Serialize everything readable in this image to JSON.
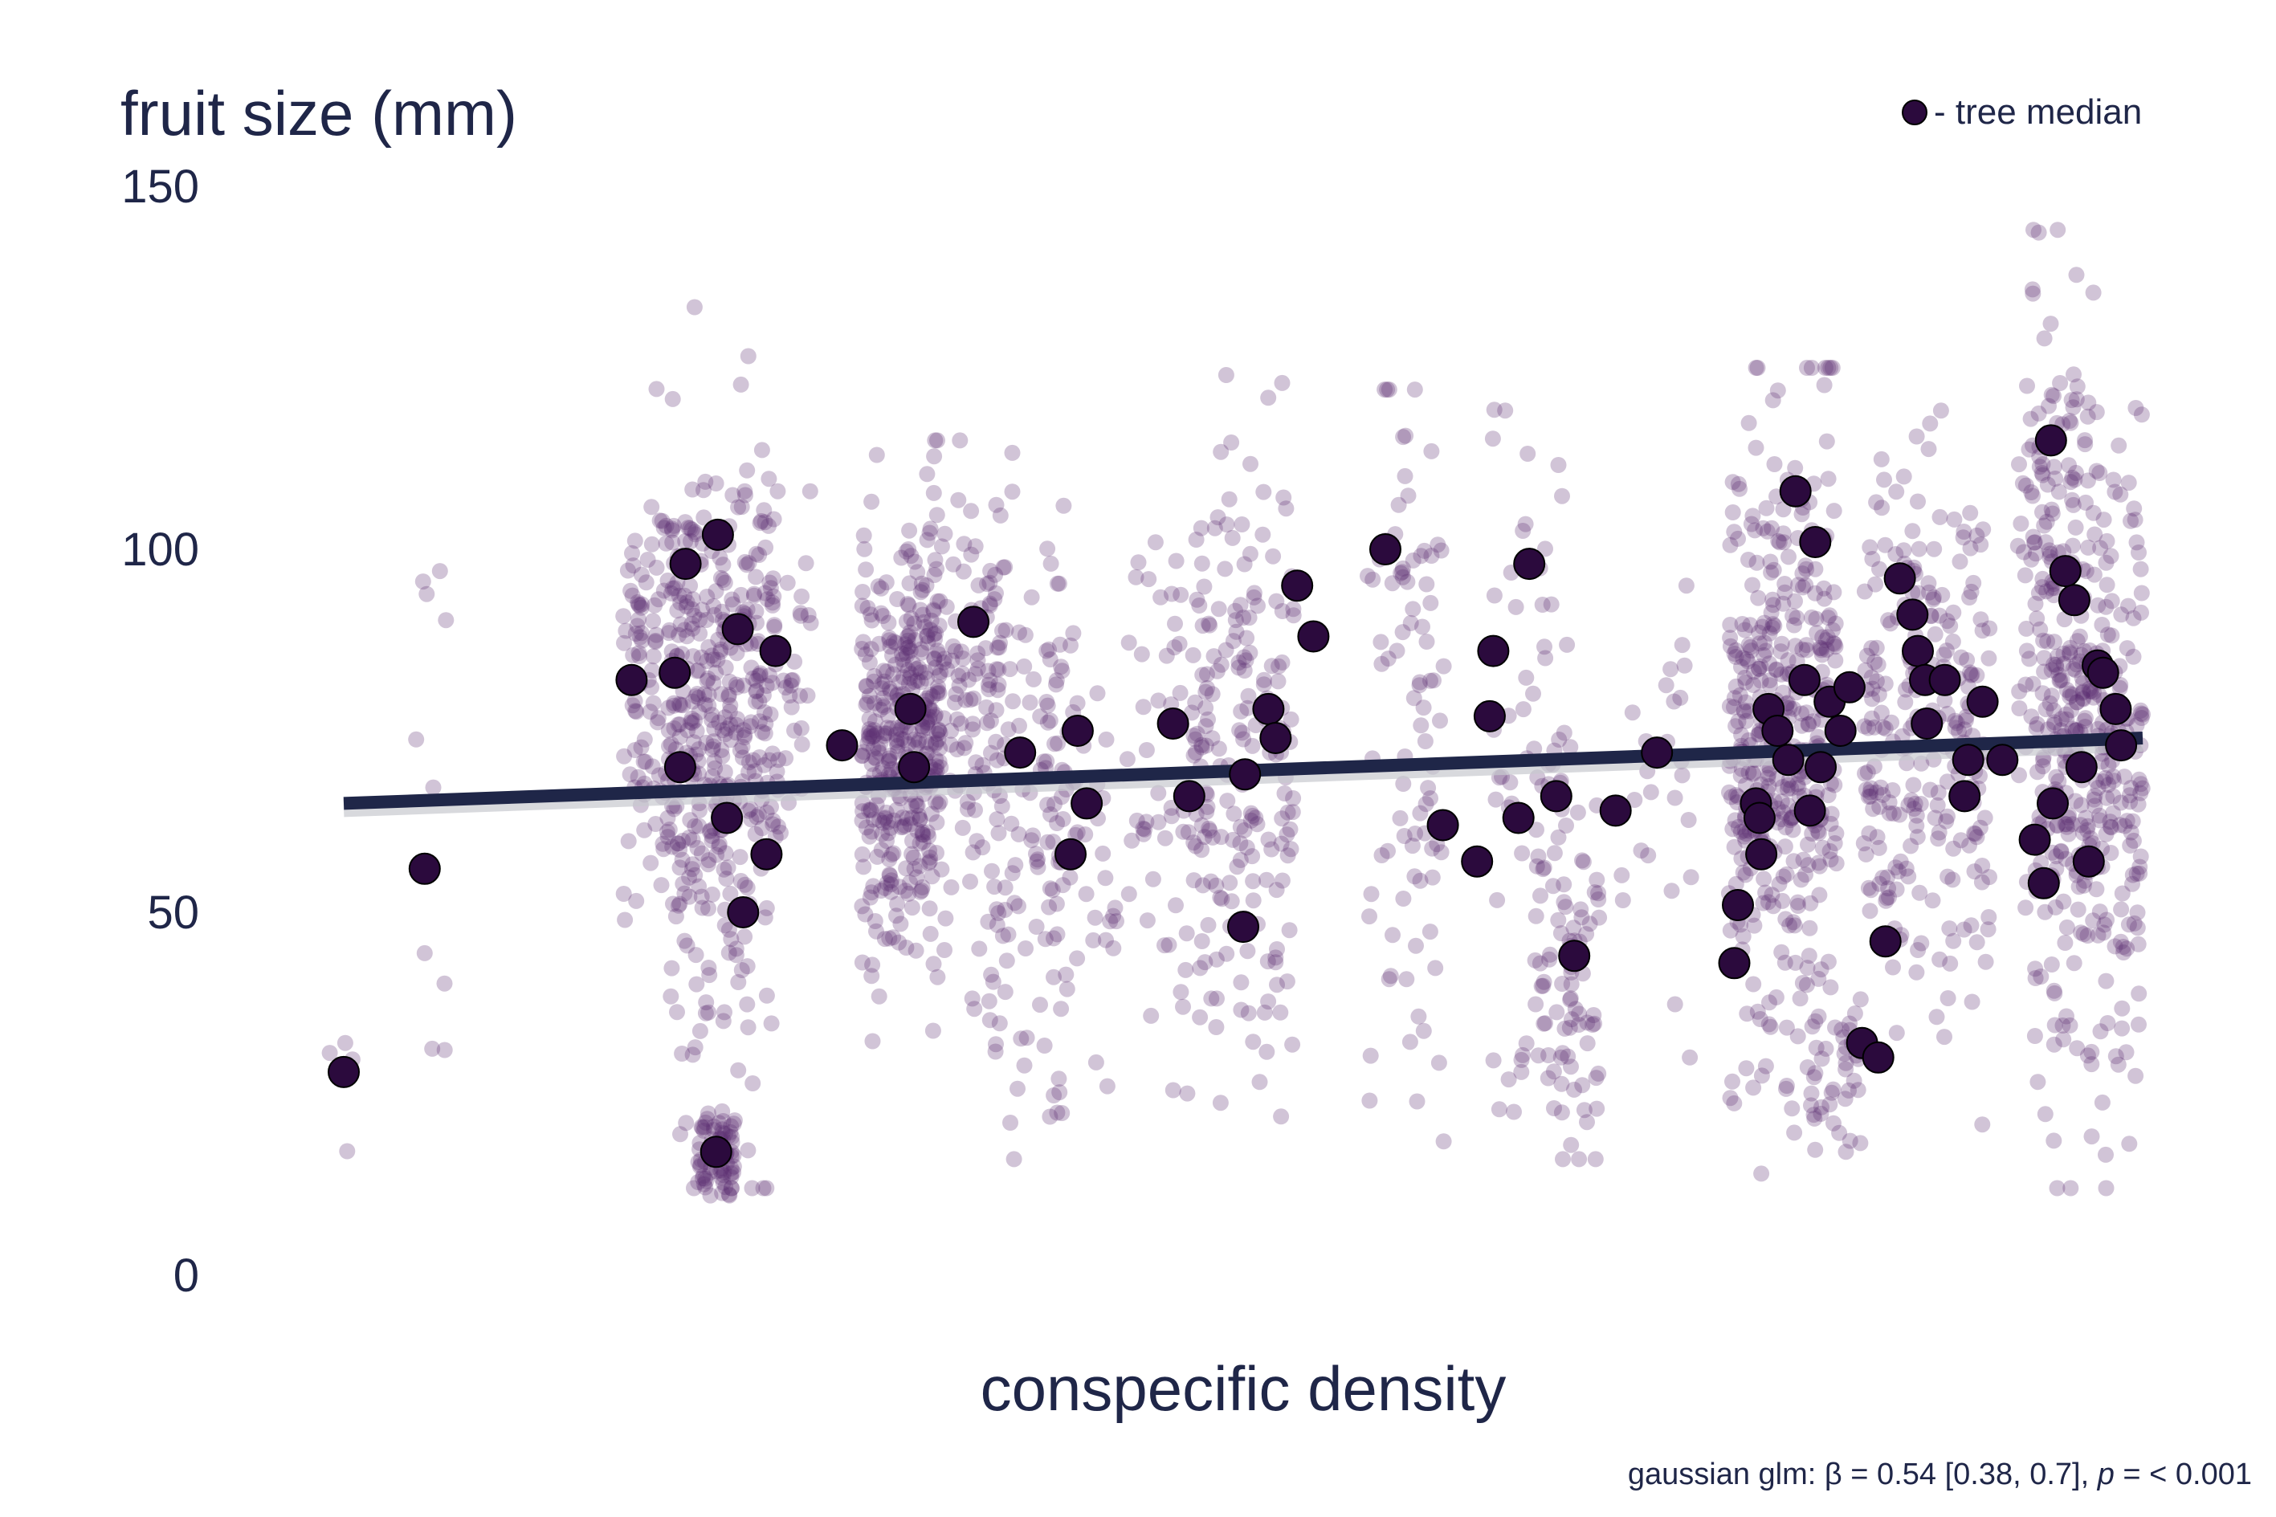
{
  "colors": {
    "text": "#1f2648",
    "raw_point": "#5b2a6e",
    "median_point": "#2b0a3d",
    "trend_line": "#1f2648"
  },
  "chart_data": {
    "type": "scatter",
    "title": "",
    "ylabel": "fruit size (mm)",
    "xlabel": "conspecific density",
    "ylim": [
      0,
      150
    ],
    "xlim": [
      0,
      1
    ],
    "yticks": [
      0,
      50,
      100,
      150
    ],
    "x_tick_labels_shown": false,
    "grid": false,
    "legend": {
      "position": "top-right",
      "entries": [
        {
          "marker": "median-point-icon",
          "label": "- tree median"
        }
      ]
    },
    "annotation": {
      "prefix": "gaussian glm: β = 0.54 [0.38, 0.7], ",
      "p_symbol": "p",
      "suffix": " = < 0.001"
    },
    "trend": {
      "label": "gaussian glm fit",
      "x": [
        0.0,
        1.0
      ],
      "y": [
        65.0,
        74.0
      ]
    },
    "raw_clusters_note": "individual fruits, jittered around each tree; estimated",
    "raw_clusters": [
      {
        "x": 0.0,
        "spread": 0.01,
        "n": 4,
        "mean": 25,
        "sd": 7,
        "min": 17,
        "max": 32
      },
      {
        "x": 0.045,
        "spread": 0.012,
        "n": 10,
        "mean": 62,
        "sd": 22,
        "min": 28,
        "max": 97
      },
      {
        "x": 0.185,
        "spread": 0.03,
        "n": 230,
        "mean": 80,
        "sd": 17,
        "min": 22,
        "max": 133
      },
      {
        "x": 0.21,
        "spread": 0.03,
        "n": 200,
        "mean": 70,
        "sd": 24,
        "min": 12,
        "max": 146
      },
      {
        "x": 0.207,
        "spread": 0.01,
        "n": 70,
        "mean": 17,
        "sd": 3,
        "min": 11,
        "max": 25
      },
      {
        "x": 0.235,
        "spread": 0.025,
        "n": 110,
        "mean": 80,
        "sd": 13,
        "min": 40,
        "max": 108
      },
      {
        "x": 0.31,
        "spread": 0.02,
        "n": 25,
        "mean": 80,
        "sd": 14,
        "min": 50,
        "max": 100
      },
      {
        "x": 0.31,
        "spread": 0.022,
        "n": 360,
        "mean": 72,
        "sd": 14,
        "min": 18,
        "max": 113
      },
      {
        "x": 0.35,
        "spread": 0.022,
        "n": 130,
        "mean": 80,
        "sd": 17,
        "min": 30,
        "max": 115
      },
      {
        "x": 0.38,
        "spread": 0.022,
        "n": 90,
        "mean": 63,
        "sd": 20,
        "min": 16,
        "max": 106
      },
      {
        "x": 0.41,
        "spread": 0.02,
        "n": 50,
        "mean": 62,
        "sd": 20,
        "min": 20,
        "max": 98
      },
      {
        "x": 0.46,
        "spread": 0.025,
        "n": 70,
        "mean": 66,
        "sd": 21,
        "min": 25,
        "max": 113
      },
      {
        "x": 0.5,
        "spread": 0.028,
        "n": 180,
        "mean": 75,
        "sd": 24,
        "min": 15,
        "max": 124
      },
      {
        "x": 0.59,
        "spread": 0.022,
        "n": 90,
        "mean": 75,
        "sd": 25,
        "min": 18,
        "max": 122
      },
      {
        "x": 0.66,
        "spread": 0.022,
        "n": 60,
        "mean": 72,
        "sd": 24,
        "min": 17,
        "max": 128
      },
      {
        "x": 0.68,
        "spread": 0.018,
        "n": 80,
        "mean": 40,
        "sd": 12,
        "min": 16,
        "max": 70
      },
      {
        "x": 0.73,
        "spread": 0.02,
        "n": 25,
        "mean": 66,
        "sd": 19,
        "min": 30,
        "max": 95
      },
      {
        "x": 0.8,
        "spread": 0.03,
        "n": 420,
        "mean": 72,
        "sd": 22,
        "min": 14,
        "max": 125
      },
      {
        "x": 0.83,
        "spread": 0.015,
        "n": 40,
        "mean": 28,
        "sd": 6,
        "min": 17,
        "max": 45
      },
      {
        "x": 0.88,
        "spread": 0.035,
        "n": 260,
        "mean": 74,
        "sd": 18,
        "min": 17,
        "max": 120
      },
      {
        "x": 0.95,
        "spread": 0.02,
        "n": 120,
        "mean": 95,
        "sd": 22,
        "min": 30,
        "max": 144
      },
      {
        "x": 0.97,
        "spread": 0.03,
        "n": 330,
        "mean": 72,
        "sd": 24,
        "min": 12,
        "max": 138
      }
    ],
    "tree_medians": {
      "x": [
        0.0,
        0.045,
        0.16,
        0.184,
        0.187,
        0.19,
        0.208,
        0.213,
        0.207,
        0.219,
        0.222,
        0.235,
        0.24,
        0.277,
        0.315,
        0.317,
        0.35,
        0.376,
        0.404,
        0.408,
        0.413,
        0.461,
        0.47,
        0.501,
        0.5,
        0.514,
        0.518,
        0.53,
        0.539,
        0.579,
        0.611,
        0.63,
        0.637,
        0.639,
        0.653,
        0.659,
        0.674,
        0.684,
        0.707,
        0.73,
        0.773,
        0.775,
        0.785,
        0.787,
        0.788,
        0.792,
        0.797,
        0.803,
        0.807,
        0.812,
        0.815,
        0.818,
        0.821,
        0.826,
        0.832,
        0.837,
        0.844,
        0.853,
        0.857,
        0.865,
        0.872,
        0.875,
        0.879,
        0.88,
        0.89,
        0.903,
        0.901,
        0.911,
        0.922,
        0.94,
        0.945,
        0.949,
        0.95,
        0.957,
        0.962,
        0.966,
        0.97,
        0.975,
        0.978,
        0.985,
        0.988
      ],
      "y": [
        28,
        56,
        82,
        83,
        70,
        98,
        102,
        63,
        17,
        89,
        50,
        58,
        86,
        73,
        78,
        70,
        90,
        72,
        58,
        75,
        65,
        76,
        66,
        69,
        48,
        78,
        74,
        95,
        88,
        100,
        62,
        57,
        77,
        86,
        63,
        98,
        66,
        44,
        64,
        72,
        43,
        51,
        65,
        63,
        58,
        78,
        75,
        71,
        108,
        82,
        64,
        101,
        70,
        79,
        75,
        81,
        32,
        30,
        46,
        96,
        91,
        86,
        82,
        76,
        82,
        71,
        66,
        79,
        71,
        60,
        54,
        115,
        65,
        97,
        93,
        70,
        57,
        84,
        83,
        78,
        73
      ]
    }
  }
}
